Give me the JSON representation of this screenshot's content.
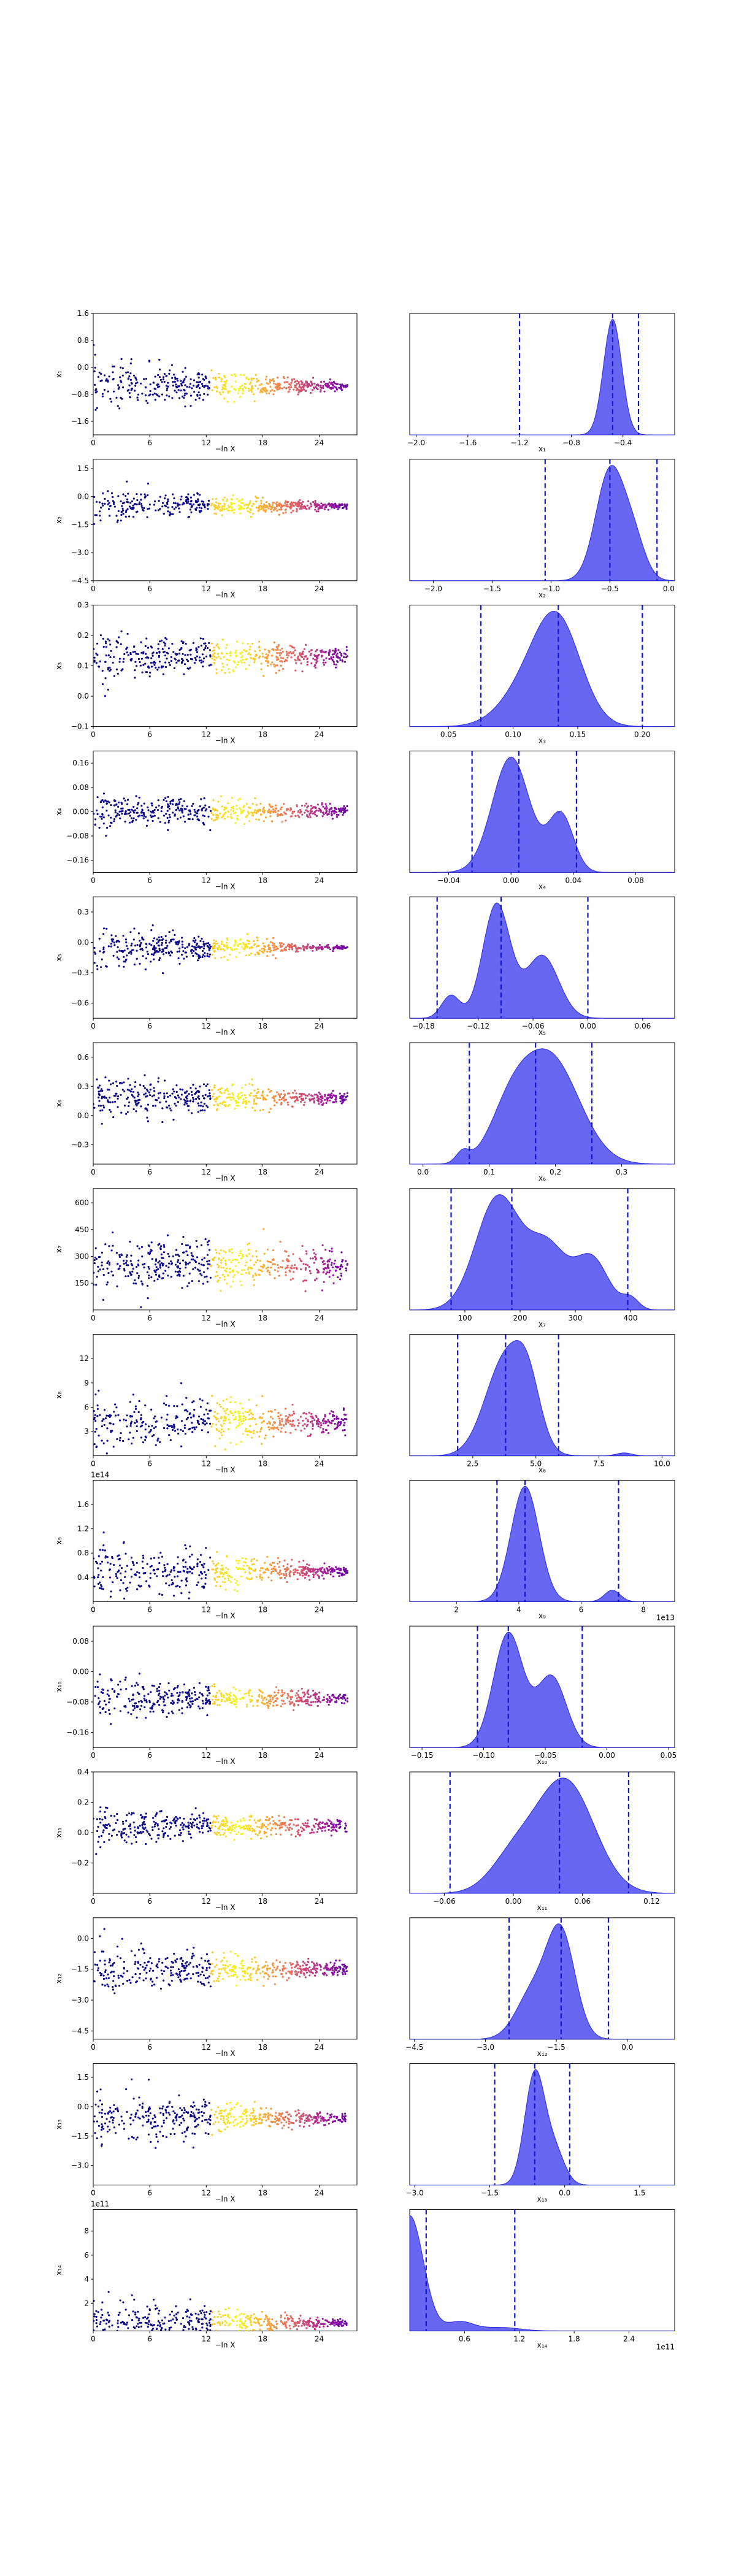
{
  "chart_data": [
    {
      "row": 1,
      "scatter": {
        "type": "scatter",
        "xlabel": "−ln X",
        "ylabel": "x₁",
        "xlim": [
          0,
          28
        ],
        "ylim": [
          -2.0,
          1.6
        ],
        "xticks": [
          "0",
          "6",
          "12",
          "18",
          "24"
        ],
        "yticks": [
          "1.6",
          "0.8",
          "0.0",
          "−0.8",
          "−1.6"
        ],
        "yticks_values": [
          1.6,
          0.8,
          0.0,
          -0.8,
          -1.6
        ],
        "center": -0.55,
        "spread_start": 0.75,
        "spread_end": 0.08
      },
      "density": {
        "type": "area",
        "xlabel": "x₁",
        "xlim": [
          -2.05,
          0.0
        ],
        "xticks": [
          "−2.0",
          "−1.6",
          "−1.2",
          "−0.8",
          "−0.4"
        ],
        "xticks_values": [
          -2.0,
          -1.6,
          -1.2,
          -0.8,
          -0.4
        ],
        "peaks": [
          [
            -0.48,
            0.07,
            1.0
          ]
        ],
        "quantiles": [
          -1.2,
          -0.48,
          -0.28
        ]
      }
    },
    {
      "row": 2,
      "scatter": {
        "type": "scatter",
        "xlabel": "−ln X",
        "ylabel": "x₂",
        "xlim": [
          0,
          28
        ],
        "ylim": [
          -4.5,
          2.0
        ],
        "xticks": [
          "0",
          "6",
          "12",
          "18",
          "24"
        ],
        "yticks": [
          "1.5",
          "0.0",
          "−1.5",
          "−3.0",
          "−4.5"
        ],
        "yticks_values": [
          1.5,
          0.0,
          -1.5,
          -3.0,
          -4.5
        ],
        "center": -0.5,
        "spread_start": 0.9,
        "spread_end": 0.12
      },
      "density": {
        "type": "area",
        "xlabel": "x₂",
        "xlim": [
          -2.2,
          0.05
        ],
        "xticks": [
          "−2.0",
          "−1.5",
          "−1.0",
          "−0.5",
          "0.0"
        ],
        "xticks_values": [
          -2.0,
          -1.5,
          -1.0,
          -0.5,
          0.0
        ],
        "peaks": [
          [
            -0.5,
            0.12,
            1.0
          ],
          [
            -0.3,
            0.1,
            0.35
          ]
        ],
        "quantiles": [
          -1.05,
          -0.5,
          -0.1
        ]
      }
    },
    {
      "row": 3,
      "scatter": {
        "type": "scatter",
        "xlabel": "−ln X",
        "ylabel": "x₃",
        "xlim": [
          0,
          28
        ],
        "ylim": [
          -0.1,
          0.3
        ],
        "xticks": [
          "0",
          "6",
          "12",
          "18",
          "24"
        ],
        "yticks": [
          "0.3",
          "0.2",
          "0.1",
          "0.0",
          "−0.1"
        ],
        "yticks_values": [
          0.3,
          0.2,
          0.1,
          0.0,
          -0.1
        ],
        "center": 0.13,
        "spread_start": 0.07,
        "spread_end": 0.025
      },
      "density": {
        "type": "area",
        "xlabel": "x₃",
        "xlim": [
          0.02,
          0.225
        ],
        "xticks": [
          "0.05",
          "0.10",
          "0.15",
          "0.20"
        ],
        "xticks_values": [
          0.05,
          0.1,
          0.15,
          0.2
        ],
        "peaks": [
          [
            0.135,
            0.018,
            1.0
          ],
          [
            0.11,
            0.02,
            0.35
          ]
        ],
        "quantiles": [
          0.075,
          0.135,
          0.2
        ]
      }
    },
    {
      "row": 4,
      "scatter": {
        "type": "scatter",
        "xlabel": "−ln X",
        "ylabel": "x₄",
        "xlim": [
          0,
          28
        ],
        "ylim": [
          -0.2,
          0.2
        ],
        "xticks": [
          "0",
          "6",
          "12",
          "18",
          "24"
        ],
        "yticks": [
          "0.16",
          "0.08",
          "0.00",
          "−0.08",
          "−0.16"
        ],
        "yticks_values": [
          0.16,
          0.08,
          0.0,
          -0.08,
          -0.16
        ],
        "center": 0.0,
        "spread_start": 0.06,
        "spread_end": 0.015
      },
      "density": {
        "type": "area",
        "xlabel": "x₄",
        "xlim": [
          -0.065,
          0.105
        ],
        "xticks": [
          "−0.04",
          "0.00",
          "0.04",
          "0.08"
        ],
        "xticks_values": [
          -0.04,
          0.0,
          0.04,
          0.08
        ],
        "peaks": [
          [
            0.0,
            0.012,
            1.0
          ],
          [
            0.032,
            0.008,
            0.5
          ]
        ],
        "quantiles": [
          -0.025,
          0.005,
          0.042
        ]
      }
    },
    {
      "row": 5,
      "scatter": {
        "type": "scatter",
        "xlabel": "−ln X",
        "ylabel": "x₅",
        "xlim": [
          0,
          28
        ],
        "ylim": [
          -0.75,
          0.45
        ],
        "xticks": [
          "0",
          "6",
          "12",
          "18",
          "24"
        ],
        "yticks": [
          "0.3",
          "0.0",
          "−0.3",
          "−0.6"
        ],
        "yticks_values": [
          0.3,
          0.0,
          -0.3,
          -0.6
        ],
        "center": -0.05,
        "spread_start": 0.2,
        "spread_end": 0.015
      },
      "density": {
        "type": "area",
        "xlabel": "x₅",
        "xlim": [
          -0.195,
          0.095
        ],
        "xticks": [
          "−0.18",
          "−0.12",
          "−0.06",
          "0.00",
          "0.06"
        ],
        "xticks_values": [
          -0.18,
          -0.12,
          -0.06,
          0.0,
          0.06
        ],
        "peaks": [
          [
            -0.1,
            0.015,
            1.0
          ],
          [
            -0.05,
            0.018,
            0.55
          ],
          [
            -0.15,
            0.01,
            0.2
          ]
        ],
        "quantiles": [
          -0.165,
          -0.095,
          0.0
        ]
      }
    },
    {
      "row": 6,
      "scatter": {
        "type": "scatter",
        "xlabel": "−ln X",
        "ylabel": "x₆",
        "xlim": [
          0,
          28
        ],
        "ylim": [
          -0.5,
          0.75
        ],
        "xticks": [
          "0",
          "6",
          "12",
          "18",
          "24"
        ],
        "yticks": [
          "0.6",
          "0.3",
          "0.0",
          "−0.3"
        ],
        "yticks_values": [
          0.6,
          0.3,
          0.0,
          -0.3
        ],
        "center": 0.18,
        "spread_start": 0.22,
        "spread_end": 0.04
      },
      "density": {
        "type": "area",
        "xlabel": "x₆",
        "xlim": [
          -0.02,
          0.38
        ],
        "xticks": [
          "0.0",
          "0.1",
          "0.2",
          "0.3"
        ],
        "xticks_values": [
          0.0,
          0.1,
          0.2,
          0.3
        ],
        "peaks": [
          [
            0.19,
            0.045,
            1.0
          ],
          [
            0.13,
            0.03,
            0.35
          ],
          [
            0.06,
            0.01,
            0.1
          ]
        ],
        "quantiles": [
          0.07,
          0.17,
          0.255
        ]
      }
    },
    {
      "row": 7,
      "scatter": {
        "type": "scatter",
        "xlabel": "−ln X",
        "ylabel": "x₇",
        "xlim": [
          0,
          28
        ],
        "ylim": [
          0,
          680
        ],
        "xticks": [
          "0",
          "6",
          "12",
          "18",
          "24"
        ],
        "yticks": [
          "600",
          "450",
          "300",
          "150"
        ],
        "yticks_values": [
          600,
          450,
          300,
          150
        ],
        "center": 250,
        "spread_start": 150,
        "spread_end": 70
      },
      "density": {
        "type": "area",
        "xlabel": "x₇",
        "xlim": [
          0,
          480
        ],
        "xticks": [
          "100",
          "200",
          "300",
          "400"
        ],
        "xticks_values": [
          100,
          200,
          300,
          400
        ],
        "peaks": [
          [
            160,
            40,
            1.0
          ],
          [
            250,
            35,
            0.55
          ],
          [
            330,
            30,
            0.45
          ],
          [
            400,
            15,
            0.1
          ]
        ],
        "quantiles": [
          75,
          185,
          395
        ]
      }
    },
    {
      "row": 8,
      "scatter": {
        "type": "scatter",
        "xlabel": "−ln X",
        "ylabel": "x₈",
        "xlim": [
          0,
          28
        ],
        "ylim": [
          0,
          15
        ],
        "xticks": [
          "0",
          "6",
          "12",
          "18",
          "24"
        ],
        "yticks": [
          "12",
          "9",
          "6",
          "3"
        ],
        "yticks_values": [
          12,
          9,
          6,
          3
        ],
        "center": 4.2,
        "spread_start": 3.5,
        "spread_end": 1.2
      },
      "density": {
        "type": "area",
        "xlabel": "x₈",
        "xlim": [
          0,
          10.5
        ],
        "xticks": [
          "2.5",
          "5.0",
          "7.5",
          "10.0"
        ],
        "xticks_values": [
          2.5,
          5.0,
          7.5,
          10.0
        ],
        "peaks": [
          [
            3.8,
            0.8,
            1.0
          ],
          [
            4.7,
            0.5,
            0.5
          ],
          [
            8.5,
            0.3,
            0.03
          ]
        ],
        "quantiles": [
          1.9,
          3.8,
          5.9
        ]
      }
    },
    {
      "row": 9,
      "scatter": {
        "type": "scatter",
        "xlabel": "−ln X",
        "ylabel": "x₉",
        "exponent": "1e14",
        "xlim": [
          0,
          28
        ],
        "ylim": [
          0,
          2.0
        ],
        "xticks": [
          "0",
          "6",
          "12",
          "18",
          "24"
        ],
        "yticks": [
          "1.6",
          "1.2",
          "0.8",
          "0.4"
        ],
        "yticks_values": [
          1.6,
          1.2,
          0.8,
          0.4
        ],
        "center": 0.5,
        "spread_start": 0.5,
        "spread_end": 0.05
      },
      "density": {
        "type": "area",
        "xlabel": "x₉",
        "exponent": "1e13",
        "xlim": [
          0.5,
          9.0
        ],
        "xticks": [
          "2",
          "4",
          "6",
          "8"
        ],
        "xticks_values": [
          2,
          4,
          6,
          8
        ],
        "peaks": [
          [
            4.2,
            0.45,
            1.0
          ],
          [
            7.0,
            0.25,
            0.1
          ]
        ],
        "quantiles": [
          3.3,
          4.2,
          7.2
        ]
      }
    },
    {
      "row": 10,
      "scatter": {
        "type": "scatter",
        "xlabel": "−ln X",
        "ylabel": "x₁₀",
        "xlim": [
          0,
          28
        ],
        "ylim": [
          -0.2,
          0.12
        ],
        "xticks": [
          "0",
          "6",
          "12",
          "18",
          "24"
        ],
        "yticks": [
          "0.08",
          "0.00",
          "−0.08",
          "−0.16"
        ],
        "yticks_values": [
          0.08,
          0.0,
          -0.08,
          -0.16
        ],
        "center": -0.07,
        "spread_start": 0.05,
        "spread_end": 0.012
      },
      "density": {
        "type": "area",
        "xlabel": "x₁₀",
        "xlim": [
          -0.16,
          0.055
        ],
        "xticks": [
          "−0.15",
          "−0.10",
          "−0.05",
          "0.00",
          "0.05"
        ],
        "xticks_values": [
          -0.15,
          -0.1,
          -0.05,
          0.0,
          0.05
        ],
        "peaks": [
          [
            -0.08,
            0.012,
            1.0
          ],
          [
            -0.045,
            0.012,
            0.62
          ]
        ],
        "quantiles": [
          -0.105,
          -0.08,
          -0.02
        ]
      }
    },
    {
      "row": 11,
      "scatter": {
        "type": "scatter",
        "xlabel": "−ln X",
        "ylabel": "x₁₁",
        "xlim": [
          0,
          28
        ],
        "ylim": [
          -0.4,
          0.4
        ],
        "xticks": [
          "0",
          "6",
          "12",
          "18",
          "24"
        ],
        "yticks": [
          "0.4",
          "0.2",
          "0.0",
          "−0.2"
        ],
        "yticks_values": [
          0.4,
          0.2,
          0.0,
          -0.2
        ],
        "center": 0.04,
        "spread_start": 0.12,
        "spread_end": 0.03
      },
      "density": {
        "type": "area",
        "xlabel": "x₁₁",
        "xlim": [
          -0.09,
          0.14
        ],
        "xticks": [
          "−0.06",
          "0.00",
          "0.06",
          "0.12"
        ],
        "xticks_values": [
          -0.06,
          0.0,
          0.06,
          0.12
        ],
        "peaks": [
          [
            0.045,
            0.025,
            1.0
          ],
          [
            0.0,
            0.02,
            0.3
          ]
        ],
        "quantiles": [
          -0.055,
          0.04,
          0.1
        ]
      }
    },
    {
      "row": 12,
      "scatter": {
        "type": "scatter",
        "xlabel": "−ln X",
        "ylabel": "x₁₂",
        "xlim": [
          0,
          28
        ],
        "ylim": [
          -4.9,
          1.0
        ],
        "xticks": [
          "0",
          "6",
          "12",
          "18",
          "24"
        ],
        "yticks": [
          "0.0",
          "−1.5",
          "−3.0",
          "−4.5"
        ],
        "yticks_values": [
          0.0,
          -1.5,
          -3.0,
          -4.5
        ],
        "center": -1.5,
        "spread_start": 1.2,
        "spread_end": 0.25
      },
      "density": {
        "type": "area",
        "xlabel": "x₁₂",
        "xlim": [
          -4.6,
          1.0
        ],
        "xticks": [
          "−4.5",
          "−3.0",
          "−1.5",
          "0.0"
        ],
        "xticks_values": [
          -4.5,
          -3.0,
          -1.5,
          0.0
        ],
        "peaks": [
          [
            -1.4,
            0.3,
            1.0
          ],
          [
            -2.0,
            0.35,
            0.45
          ]
        ],
        "quantiles": [
          -2.5,
          -1.4,
          -0.4
        ]
      }
    },
    {
      "row": 13,
      "scatter": {
        "type": "scatter",
        "xlabel": "−ln X",
        "ylabel": "x₁₃",
        "xlim": [
          0,
          28
        ],
        "ylim": [
          -4.0,
          2.2
        ],
        "xticks": [
          "0",
          "6",
          "12",
          "18",
          "24"
        ],
        "yticks": [
          "1.5",
          "0.0",
          "−1.5",
          "−3.0"
        ],
        "yticks_values": [
          1.5,
          0.0,
          -1.5,
          -3.0
        ],
        "center": -0.6,
        "spread_start": 1.3,
        "spread_end": 0.2
      },
      "density": {
        "type": "area",
        "xlabel": "x₁₃",
        "xlim": [
          -3.1,
          2.2
        ],
        "xticks": [
          "−3.0",
          "−1.5",
          "0.0",
          "1.5"
        ],
        "xticks_values": [
          -3.0,
          -1.5,
          0.0,
          1.5
        ],
        "peaks": [
          [
            -0.6,
            0.2,
            1.0
          ],
          [
            -0.2,
            0.2,
            0.3
          ]
        ],
        "quantiles": [
          -1.4,
          -0.6,
          0.1
        ]
      }
    },
    {
      "row": 14,
      "scatter": {
        "type": "scatter",
        "xlabel": "−ln X",
        "ylabel": "x₁₄",
        "exponent": "1e11",
        "xlim": [
          0,
          28
        ],
        "ylim": [
          -0.3,
          9.8
        ],
        "xticks": [
          "0",
          "6",
          "12",
          "18",
          "24"
        ],
        "yticks": [
          "8",
          "6",
          "4",
          "2"
        ],
        "yticks_values": [
          8,
          6,
          4,
          2
        ],
        "center": 0.4,
        "spread_start": 1.8,
        "spread_end": 0.25
      },
      "density": {
        "type": "area",
        "xlabel": "x₁₄",
        "exponent": "1e11",
        "xlim": [
          0,
          2.9
        ],
        "xticks": [
          "0.6",
          "1.2",
          "1.8",
          "2.4"
        ],
        "xticks_values": [
          0.6,
          1.2,
          1.8,
          2.4
        ],
        "peaks": [
          [
            0.0,
            0.15,
            1.0
          ],
          [
            0.55,
            0.15,
            0.08
          ],
          [
            1.0,
            0.2,
            0.03
          ]
        ],
        "quantiles": [
          0.18,
          1.15
        ]
      }
    }
  ]
}
